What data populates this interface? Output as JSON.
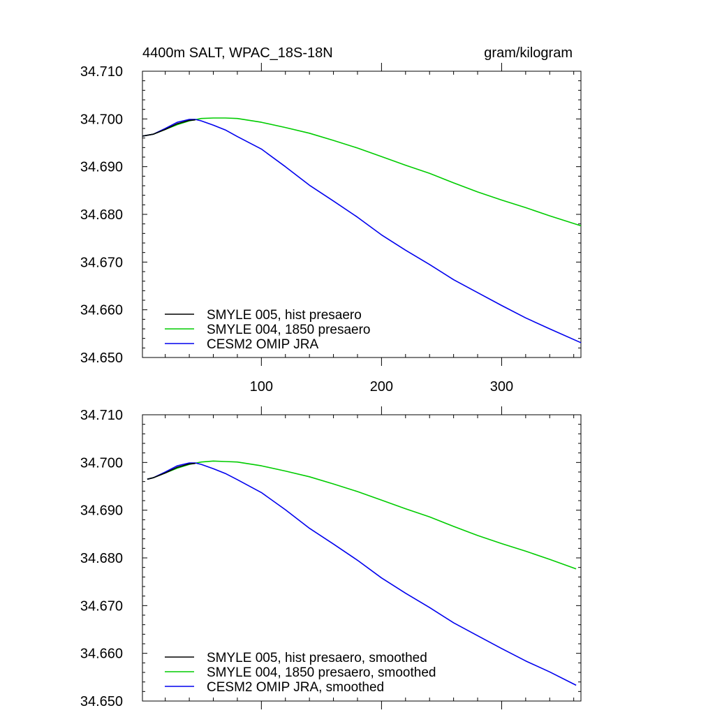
{
  "chart_data": [
    {
      "type": "line",
      "title_left": "4400m SALT, WPAC_18S-18N",
      "title_right": "gram/kilogram",
      "xlim": [
        1,
        366
      ],
      "ylim": [
        34.65,
        34.71
      ],
      "x_ticks": [
        100,
        200,
        300
      ],
      "x_tick_labels": [
        "100",
        "200",
        "300"
      ],
      "y_ticks": [
        34.65,
        34.66,
        34.67,
        34.68,
        34.69,
        34.7,
        34.71
      ],
      "y_tick_labels": [
        "34.650",
        "34.660",
        "34.670",
        "34.680",
        "34.690",
        "34.700",
        "34.710"
      ],
      "legend_position": "bottom-left",
      "series": [
        {
          "name": "SMYLE 005, hist presaero",
          "color": "#000000",
          "x": [
            1,
            10,
            20,
            30,
            40,
            45
          ],
          "y": [
            34.6964,
            34.6968,
            34.6978,
            34.699,
            34.6997,
            34.6998
          ]
        },
        {
          "name": "SMYLE 004, 1850 presaero",
          "color": "#00cc00",
          "x": [
            1,
            10,
            20,
            30,
            40,
            50,
            60,
            70,
            80,
            100,
            120,
            140,
            160,
            180,
            200,
            220,
            240,
            260,
            280,
            300,
            320,
            340,
            366
          ],
          "y": [
            34.6964,
            34.6968,
            34.6978,
            34.6988,
            34.6996,
            34.7001,
            34.7002,
            34.7002,
            34.7001,
            34.6993,
            34.6982,
            34.697,
            34.6955,
            34.6939,
            34.6921,
            34.6903,
            34.6886,
            34.6866,
            34.6847,
            34.683,
            34.6814,
            34.6797,
            34.6776
          ]
        },
        {
          "name": "CESM2 OMIP JRA",
          "color": "#0000ee",
          "x": [
            1,
            10,
            20,
            30,
            40,
            45,
            50,
            60,
            70,
            80,
            100,
            120,
            140,
            160,
            180,
            200,
            220,
            240,
            260,
            280,
            300,
            320,
            340,
            366
          ],
          "y": [
            34.6964,
            34.6968,
            34.698,
            34.6993,
            34.6999,
            34.6999,
            34.6996,
            34.6987,
            34.6977,
            34.6963,
            34.6937,
            34.69,
            34.6861,
            34.6828,
            34.6794,
            34.6757,
            34.6725,
            34.6695,
            34.6663,
            34.6636,
            34.6609,
            34.6583,
            34.656,
            34.6531
          ]
        }
      ]
    },
    {
      "type": "line",
      "xlim": [
        1,
        366
      ],
      "ylim": [
        34.65,
        34.71
      ],
      "x_ticks": [
        100,
        200,
        300
      ],
      "y_ticks": [
        34.65,
        34.66,
        34.67,
        34.68,
        34.69,
        34.7,
        34.71
      ],
      "y_tick_labels": [
        "34.650",
        "34.660",
        "34.670",
        "34.680",
        "34.690",
        "34.700",
        "34.710"
      ],
      "legend_position": "bottom-left",
      "series": [
        {
          "name": "SMYLE 005, hist presaero, smoothed",
          "color": "#000000",
          "x": [
            5,
            10,
            20,
            30,
            40,
            45
          ],
          "y": [
            34.6965,
            34.6968,
            34.6978,
            34.699,
            34.6997,
            34.6998
          ]
        },
        {
          "name": "SMYLE 004, 1850 presaero, smoothed",
          "color": "#00cc00",
          "x": [
            5,
            10,
            20,
            30,
            40,
            50,
            60,
            70,
            80,
            100,
            120,
            140,
            160,
            180,
            200,
            220,
            240,
            260,
            280,
            300,
            320,
            340,
            362
          ],
          "y": [
            34.6965,
            34.6968,
            34.6978,
            34.6988,
            34.6996,
            34.7001,
            34.7003,
            34.7002,
            34.7001,
            34.6993,
            34.6982,
            34.697,
            34.6955,
            34.6939,
            34.6921,
            34.6903,
            34.6886,
            34.6866,
            34.6847,
            34.683,
            34.6814,
            34.6797,
            34.6777
          ]
        },
        {
          "name": "CESM2 OMIP JRA, smoothed",
          "color": "#0000ee",
          "x": [
            5,
            10,
            20,
            30,
            40,
            45,
            50,
            60,
            70,
            80,
            100,
            120,
            140,
            160,
            180,
            200,
            220,
            240,
            260,
            280,
            300,
            320,
            340,
            362
          ],
          "y": [
            34.6965,
            34.6968,
            34.698,
            34.6993,
            34.6999,
            34.6999,
            34.6996,
            34.6987,
            34.6977,
            34.6964,
            34.6937,
            34.6901,
            34.6862,
            34.6829,
            34.6795,
            34.6758,
            34.6726,
            34.6696,
            34.6664,
            34.6637,
            34.661,
            34.6584,
            34.6561,
            34.6533
          ]
        }
      ]
    }
  ]
}
